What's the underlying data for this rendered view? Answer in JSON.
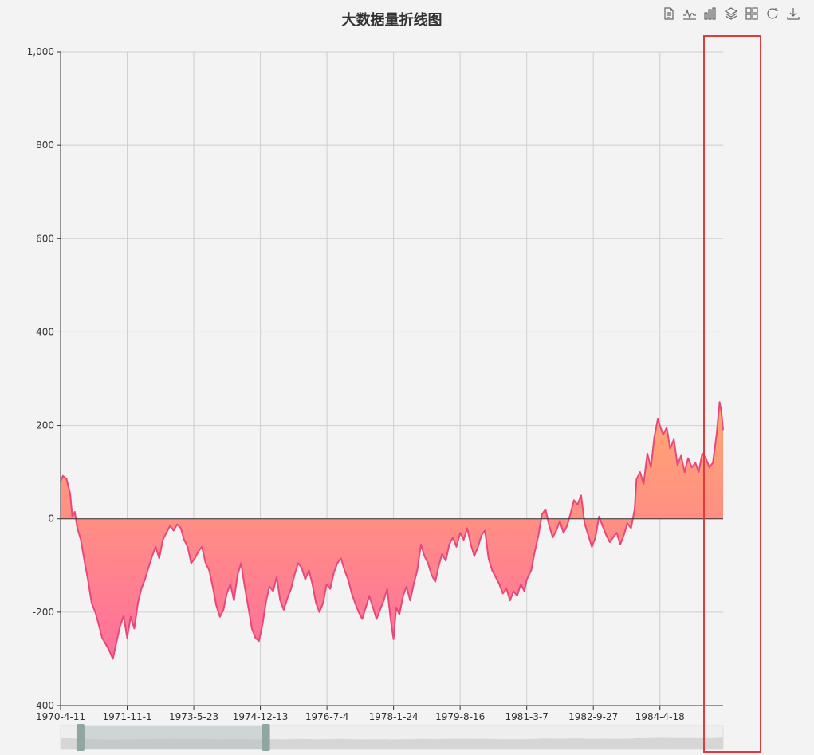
{
  "title": "大数据量折线图",
  "toolbar": {
    "items": [
      {
        "name": "data-view",
        "icon": "document-icon"
      },
      {
        "name": "line-type",
        "icon": "line-chart-icon"
      },
      {
        "name": "bar-type",
        "icon": "bar-chart-icon"
      },
      {
        "name": "stack",
        "icon": "stack-icon"
      },
      {
        "name": "tiled",
        "icon": "tiled-icon"
      },
      {
        "name": "restore",
        "icon": "refresh-icon"
      },
      {
        "name": "save-image",
        "icon": "download-icon"
      }
    ]
  },
  "colors": {
    "line": "#e8477a",
    "area_top": "#ffa86f",
    "area_bottom": "#ff6f9c",
    "grid": "#cfcfcf",
    "axis": "#333333",
    "zoom_handle": "#8fa6a3",
    "zoom_fill": "#b7c1c0",
    "highlight": "#e03b3b"
  },
  "chart_data": {
    "type": "area",
    "title": "大数据量折线图",
    "x_range": [
      "1970-4-11",
      "1985-10-10"
    ],
    "ylim": [
      -400,
      1000
    ],
    "yticks": [
      "1,000",
      "800",
      "600",
      "400",
      "200",
      "0",
      "-200",
      "-400"
    ],
    "xticks": [
      "1970-4-11",
      "1971-11-1",
      "1973-5-23",
      "1974-12-13",
      "1976-7-4",
      "1978-1-24",
      "1979-8-16",
      "1981-3-7",
      "1982-9-27",
      "1984-4-18"
    ],
    "grid": true,
    "dataZoom": {
      "start": 3,
      "end": 31
    },
    "points": [
      [
        "1970-04-11",
        80
      ],
      [
        "1970-05-01",
        92
      ],
      [
        "1970-06-01",
        85
      ],
      [
        "1970-07-01",
        55
      ],
      [
        "1970-07-20",
        5
      ],
      [
        "1970-08-10",
        15
      ],
      [
        "1970-09-01",
        -20
      ],
      [
        "1970-10-01",
        -45
      ],
      [
        "1970-11-01",
        -90
      ],
      [
        "1970-12-01",
        -130
      ],
      [
        "1971-01-01",
        -180
      ],
      [
        "1971-02-01",
        -200
      ],
      [
        "1971-03-01",
        -225
      ],
      [
        "1971-04-01",
        -255
      ],
      [
        "1971-05-01",
        -268
      ],
      [
        "1971-06-01",
        -282
      ],
      [
        "1971-07-01",
        -300
      ],
      [
        "1971-08-01",
        -265
      ],
      [
        "1971-09-01",
        -230
      ],
      [
        "1971-10-01",
        -208
      ],
      [
        "1971-11-01",
        -255
      ],
      [
        "1971-12-01",
        -210
      ],
      [
        "1972-01-01",
        -235
      ],
      [
        "1972-02-01",
        -180
      ],
      [
        "1972-03-01",
        -150
      ],
      [
        "1972-04-01",
        -130
      ],
      [
        "1972-05-01",
        -105
      ],
      [
        "1972-06-01",
        -80
      ],
      [
        "1972-07-01",
        -60
      ],
      [
        "1972-08-01",
        -85
      ],
      [
        "1972-09-01",
        -45
      ],
      [
        "1972-10-01",
        -30
      ],
      [
        "1972-11-01",
        -15
      ],
      [
        "1972-12-01",
        -25
      ],
      [
        "1973-01-01",
        -12
      ],
      [
        "1973-02-01",
        -20
      ],
      [
        "1973-03-01",
        -45
      ],
      [
        "1973-04-01",
        -60
      ],
      [
        "1973-05-01",
        -95
      ],
      [
        "1973-06-01",
        -85
      ],
      [
        "1973-07-01",
        -70
      ],
      [
        "1973-08-01",
        -60
      ],
      [
        "1973-09-01",
        -95
      ],
      [
        "1973-10-01",
        -110
      ],
      [
        "1973-11-01",
        -145
      ],
      [
        "1973-12-01",
        -185
      ],
      [
        "1974-01-01",
        -210
      ],
      [
        "1974-02-01",
        -195
      ],
      [
        "1974-03-01",
        -160
      ],
      [
        "1974-04-01",
        -140
      ],
      [
        "1974-05-01",
        -175
      ],
      [
        "1974-06-01",
        -120
      ],
      [
        "1974-07-01",
        -95
      ],
      [
        "1974-08-01",
        -145
      ],
      [
        "1974-09-01",
        -190
      ],
      [
        "1974-10-01",
        -235
      ],
      [
        "1974-11-01",
        -255
      ],
      [
        "1974-12-01",
        -262
      ],
      [
        "1975-01-01",
        -225
      ],
      [
        "1975-02-01",
        -175
      ],
      [
        "1975-03-01",
        -145
      ],
      [
        "1975-04-01",
        -155
      ],
      [
        "1975-05-01",
        -125
      ],
      [
        "1975-06-01",
        -175
      ],
      [
        "1975-07-01",
        -195
      ],
      [
        "1975-08-01",
        -170
      ],
      [
        "1975-09-01",
        -150
      ],
      [
        "1975-10-01",
        -120
      ],
      [
        "1975-11-01",
        -95
      ],
      [
        "1975-12-01",
        -105
      ],
      [
        "1976-01-01",
        -130
      ],
      [
        "1976-02-01",
        -110
      ],
      [
        "1976-03-01",
        -140
      ],
      [
        "1976-04-01",
        -180
      ],
      [
        "1976-05-01",
        -200
      ],
      [
        "1976-06-01",
        -180
      ],
      [
        "1976-07-01",
        -140
      ],
      [
        "1976-08-01",
        -150
      ],
      [
        "1976-09-01",
        -115
      ],
      [
        "1976-10-01",
        -95
      ],
      [
        "1976-11-01",
        -85
      ],
      [
        "1976-12-01",
        -110
      ],
      [
        "1977-01-01",
        -130
      ],
      [
        "1977-02-01",
        -160
      ],
      [
        "1977-03-01",
        -180
      ],
      [
        "1977-04-01",
        -200
      ],
      [
        "1977-05-01",
        -215
      ],
      [
        "1977-06-01",
        -190
      ],
      [
        "1977-07-01",
        -165
      ],
      [
        "1977-08-01",
        -190
      ],
      [
        "1977-09-01",
        -215
      ],
      [
        "1977-10-01",
        -195
      ],
      [
        "1977-11-01",
        -175
      ],
      [
        "1977-12-01",
        -150
      ],
      [
        "1978-01-01",
        -220
      ],
      [
        "1978-01-24",
        -258
      ],
      [
        "1978-02-15",
        -190
      ],
      [
        "1978-03-15",
        -205
      ],
      [
        "1978-04-15",
        -165
      ],
      [
        "1978-05-15",
        -145
      ],
      [
        "1978-06-15",
        -175
      ],
      [
        "1978-07-15",
        -140
      ],
      [
        "1978-08-15",
        -110
      ],
      [
        "1978-09-15",
        -55
      ],
      [
        "1978-10-15",
        -80
      ],
      [
        "1978-11-15",
        -95
      ],
      [
        "1978-12-15",
        -120
      ],
      [
        "1979-01-15",
        -135
      ],
      [
        "1979-02-15",
        -100
      ],
      [
        "1979-03-15",
        -75
      ],
      [
        "1979-04-15",
        -90
      ],
      [
        "1979-05-15",
        -55
      ],
      [
        "1979-06-15",
        -40
      ],
      [
        "1979-07-15",
        -60
      ],
      [
        "1979-08-16",
        -30
      ],
      [
        "1979-09-15",
        -45
      ],
      [
        "1979-10-15",
        -20
      ],
      [
        "1979-11-15",
        -55
      ],
      [
        "1979-12-15",
        -80
      ],
      [
        "1980-01-15",
        -60
      ],
      [
        "1980-02-15",
        -35
      ],
      [
        "1980-03-15",
        -25
      ],
      [
        "1980-04-15",
        -85
      ],
      [
        "1980-05-15",
        -110
      ],
      [
        "1980-06-15",
        -125
      ],
      [
        "1980-07-15",
        -140
      ],
      [
        "1980-08-15",
        -160
      ],
      [
        "1980-09-15",
        -150
      ],
      [
        "1980-10-15",
        -175
      ],
      [
        "1980-11-15",
        -155
      ],
      [
        "1980-12-15",
        -165
      ],
      [
        "1981-01-15",
        -140
      ],
      [
        "1981-02-15",
        -155
      ],
      [
        "1981-03-07",
        -130
      ],
      [
        "1981-04-15",
        -110
      ],
      [
        "1981-05-15",
        -70
      ],
      [
        "1981-06-15",
        -35
      ],
      [
        "1981-07-15",
        10
      ],
      [
        "1981-08-15",
        20
      ],
      [
        "1981-09-15",
        -15
      ],
      [
        "1981-10-15",
        -40
      ],
      [
        "1981-11-15",
        -25
      ],
      [
        "1981-12-15",
        -5
      ],
      [
        "1982-01-15",
        -30
      ],
      [
        "1982-02-15",
        -15
      ],
      [
        "1982-03-15",
        10
      ],
      [
        "1982-04-15",
        40
      ],
      [
        "1982-05-15",
        30
      ],
      [
        "1982-06-15",
        50
      ],
      [
        "1982-07-15",
        -10
      ],
      [
        "1982-08-15",
        -35
      ],
      [
        "1982-09-15",
        -60
      ],
      [
        "1982-10-15",
        -40
      ],
      [
        "1982-11-15",
        5
      ],
      [
        "1982-12-15",
        -15
      ],
      [
        "1983-01-15",
        -35
      ],
      [
        "1983-02-15",
        -50
      ],
      [
        "1983-03-15",
        -40
      ],
      [
        "1983-04-15",
        -30
      ],
      [
        "1983-05-15",
        -55
      ],
      [
        "1983-06-15",
        -35
      ],
      [
        "1983-07-15",
        -10
      ],
      [
        "1983-08-15",
        -20
      ],
      [
        "1983-09-15",
        20
      ],
      [
        "1983-10-01",
        85
      ],
      [
        "1983-11-01",
        100
      ],
      [
        "1983-12-01",
        75
      ],
      [
        "1984-01-01",
        140
      ],
      [
        "1984-02-01",
        110
      ],
      [
        "1984-03-01",
        175
      ],
      [
        "1984-04-01",
        215
      ],
      [
        "1984-04-18",
        200
      ],
      [
        "1984-05-15",
        180
      ],
      [
        "1984-06-15",
        195
      ],
      [
        "1984-07-15",
        150
      ],
      [
        "1984-08-15",
        170
      ],
      [
        "1984-09-15",
        115
      ],
      [
        "1984-10-15",
        135
      ],
      [
        "1984-11-15",
        100
      ],
      [
        "1984-12-15",
        130
      ],
      [
        "1985-01-15",
        110
      ],
      [
        "1985-02-15",
        120
      ],
      [
        "1985-03-15",
        100
      ],
      [
        "1985-04-15",
        140
      ],
      [
        "1985-05-15",
        130
      ],
      [
        "1985-06-15",
        110
      ],
      [
        "1985-07-15",
        120
      ],
      [
        "1985-08-15",
        180
      ],
      [
        "1985-09-10",
        250
      ],
      [
        "1985-09-25",
        230
      ],
      [
        "1985-10-10",
        190
      ]
    ]
  }
}
